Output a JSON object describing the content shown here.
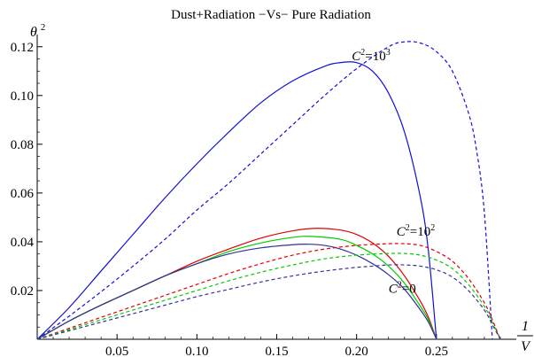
{
  "chart_data": {
    "type": "line",
    "title": "Dust+Radiation −Vs− Pure Radiation",
    "xlabel": {
      "numerator": "1",
      "denominator": "V"
    },
    "ylabel": {
      "base": "θ",
      "exponent": "2"
    },
    "xlim": [
      0,
      0.3
    ],
    "ylim": [
      0,
      0.125
    ],
    "x_ticks": [
      0.05,
      0.1,
      0.15,
      0.2,
      0.25
    ],
    "x_tick_labels": [
      "0.05",
      "0.10",
      "0.15",
      "0.20",
      "0.25"
    ],
    "y_ticks": [
      0.02,
      0.04,
      0.06,
      0.08,
      0.1,
      0.12
    ],
    "y_tick_labels": [
      "0.02",
      "0.04",
      "0.06",
      "0.08",
      "0.10",
      "0.12"
    ],
    "grid": false,
    "annotations": [
      {
        "base": "C",
        "exponent": "2",
        "value_base": "=10",
        "value_exponent": "3",
        "x": 0.197,
        "y": 0.1145
      },
      {
        "base": "C",
        "exponent": "2",
        "value_base": "=10",
        "value_exponent": "2",
        "x": 0.225,
        "y": 0.0425
      },
      {
        "base": "C",
        "exponent": "2",
        "value_base": "=0",
        "value_exponent": "",
        "x": 0.22,
        "y": 0.019
      }
    ],
    "series": [
      {
        "color": "#1010d8",
        "dash": "solid",
        "x": [
          0.0,
          0.02,
          0.04,
          0.06,
          0.08,
          0.1,
          0.12,
          0.14,
          0.16,
          0.18,
          0.19,
          0.2,
          0.21,
          0.22,
          0.23,
          0.24,
          0.245,
          0.25
        ],
        "y": [
          0.0,
          0.013,
          0.028,
          0.043,
          0.058,
          0.072,
          0.085,
          0.097,
          0.106,
          0.112,
          0.1135,
          0.1135,
          0.11,
          0.101,
          0.085,
          0.058,
          0.036,
          0.0
        ]
      },
      {
        "color": "#1010d8",
        "dash": "dashed",
        "x": [
          0.0,
          0.02,
          0.04,
          0.06,
          0.08,
          0.1,
          0.12,
          0.14,
          0.16,
          0.18,
          0.2,
          0.22,
          0.23,
          0.24,
          0.25,
          0.26,
          0.27,
          0.275,
          0.28,
          0.285
        ],
        "y": [
          0.0,
          0.0095,
          0.0195,
          0.03,
          0.041,
          0.053,
          0.064,
          0.076,
          0.088,
          0.1,
          0.111,
          0.12,
          0.122,
          0.1215,
          0.118,
          0.11,
          0.093,
          0.078,
          0.052,
          0.0
        ]
      },
      {
        "color": "#e00000",
        "dash": "solid",
        "x": [
          0.0,
          0.02,
          0.04,
          0.06,
          0.08,
          0.1,
          0.12,
          0.14,
          0.16,
          0.175,
          0.19,
          0.2,
          0.21,
          0.22,
          0.23,
          0.24,
          0.245,
          0.25
        ],
        "y": [
          0.0,
          0.0075,
          0.014,
          0.02,
          0.026,
          0.032,
          0.037,
          0.0415,
          0.0445,
          0.0455,
          0.0448,
          0.043,
          0.0395,
          0.034,
          0.026,
          0.0155,
          0.009,
          0.0
        ]
      },
      {
        "color": "#00cc00",
        "dash": "solid",
        "x": [
          0.0,
          0.02,
          0.04,
          0.06,
          0.08,
          0.1,
          0.12,
          0.14,
          0.16,
          0.172,
          0.19,
          0.2,
          0.21,
          0.22,
          0.23,
          0.24,
          0.245,
          0.25
        ],
        "y": [
          0.0,
          0.0075,
          0.014,
          0.02,
          0.026,
          0.031,
          0.036,
          0.0395,
          0.0418,
          0.0422,
          0.041,
          0.0385,
          0.035,
          0.03,
          0.023,
          0.0135,
          0.008,
          0.0
        ]
      },
      {
        "color": "#333399",
        "dash": "solid",
        "x": [
          0.0,
          0.02,
          0.04,
          0.06,
          0.08,
          0.1,
          0.12,
          0.14,
          0.16,
          0.17,
          0.18,
          0.19,
          0.2,
          0.21,
          0.22,
          0.23,
          0.24,
          0.245,
          0.25
        ],
        "y": [
          0.0,
          0.0075,
          0.014,
          0.02,
          0.026,
          0.031,
          0.035,
          0.0375,
          0.0388,
          0.039,
          0.0385,
          0.037,
          0.0345,
          0.031,
          0.0265,
          0.0205,
          0.012,
          0.007,
          0.0
        ]
      },
      {
        "color": "#e00000",
        "dash": "dashed",
        "x": [
          0.0,
          0.02,
          0.04,
          0.06,
          0.08,
          0.1,
          0.12,
          0.14,
          0.16,
          0.18,
          0.2,
          0.22,
          0.23,
          0.24,
          0.25,
          0.26,
          0.27,
          0.28,
          0.285,
          0.29
        ],
        "y": [
          0.0,
          0.0045,
          0.009,
          0.0135,
          0.018,
          0.0225,
          0.027,
          0.031,
          0.0345,
          0.037,
          0.0385,
          0.0392,
          0.0392,
          0.0385,
          0.036,
          0.032,
          0.025,
          0.015,
          0.008,
          0.0
        ]
      },
      {
        "color": "#00cc00",
        "dash": "dashed",
        "x": [
          0.0,
          0.02,
          0.04,
          0.06,
          0.08,
          0.1,
          0.12,
          0.14,
          0.16,
          0.18,
          0.2,
          0.22,
          0.23,
          0.24,
          0.25,
          0.26,
          0.27,
          0.28,
          0.285,
          0.29
        ],
        "y": [
          0.0,
          0.004,
          0.008,
          0.012,
          0.016,
          0.02,
          0.024,
          0.0275,
          0.0305,
          0.033,
          0.0345,
          0.0352,
          0.0352,
          0.0345,
          0.0325,
          0.029,
          0.0225,
          0.0135,
          0.007,
          0.0
        ]
      },
      {
        "color": "#333399",
        "dash": "dashed",
        "x": [
          0.0,
          0.02,
          0.04,
          0.06,
          0.08,
          0.1,
          0.12,
          0.14,
          0.16,
          0.18,
          0.2,
          0.21,
          0.22,
          0.23,
          0.24,
          0.25,
          0.26,
          0.27,
          0.28,
          0.285,
          0.29
        ],
        "y": [
          0.0,
          0.0035,
          0.007,
          0.0105,
          0.014,
          0.0175,
          0.0205,
          0.0235,
          0.026,
          0.028,
          0.0295,
          0.03,
          0.0305,
          0.0305,
          0.03,
          0.0285,
          0.0255,
          0.02,
          0.012,
          0.006,
          0.0
        ]
      }
    ]
  }
}
